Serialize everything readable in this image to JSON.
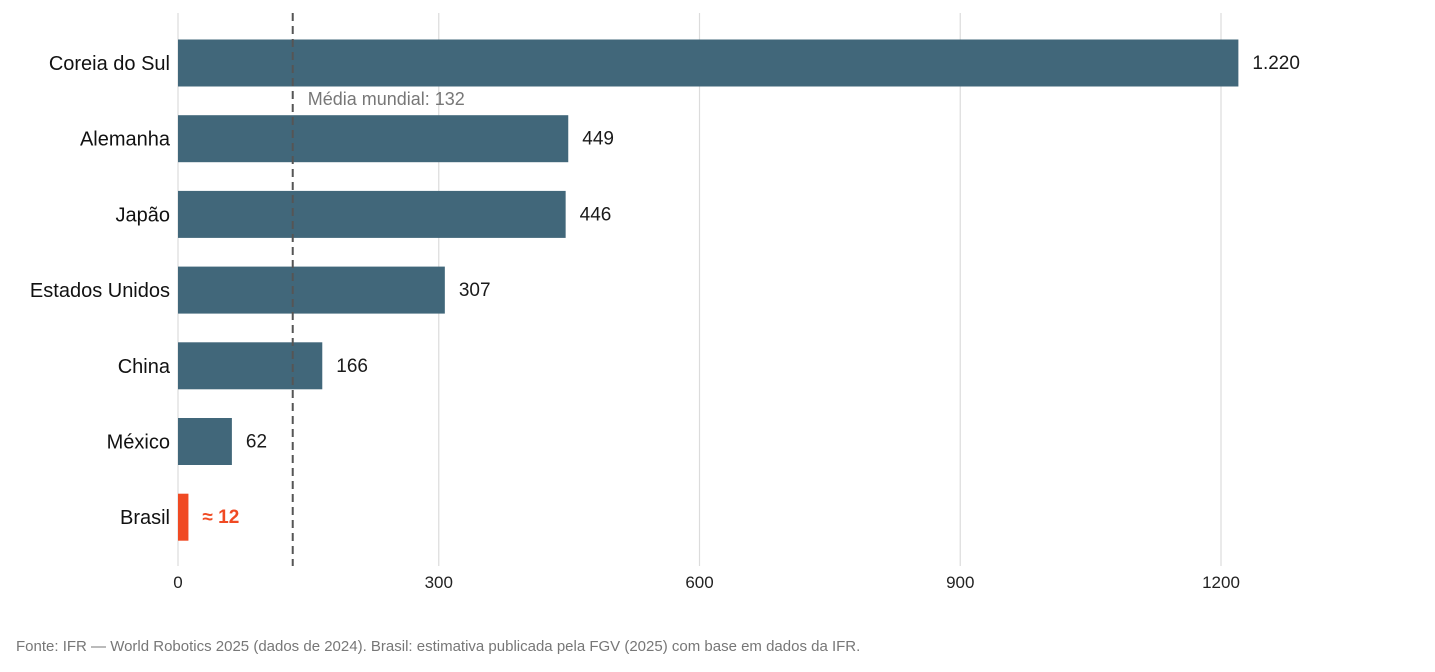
{
  "chart_data": {
    "type": "bar",
    "orientation": "horizontal",
    "categories": [
      "Coreia do Sul",
      "Alemanha",
      "Japão",
      "Estados Unidos",
      "China",
      "México",
      "Brasil"
    ],
    "values": [
      1220,
      449,
      446,
      307,
      166,
      62,
      12
    ],
    "value_labels": [
      "1.220",
      "449",
      "446",
      "307",
      "166",
      "62",
      "≈ 12"
    ],
    "highlight": {
      "category": "Brasil",
      "color": "#f04a23"
    },
    "bar_color": "#41677a",
    "xlim": [
      0,
      1300
    ],
    "xticks": [
      0,
      300,
      600,
      900,
      1200
    ],
    "xtick_labels": [
      "0",
      "300",
      "600",
      "900",
      "1200"
    ],
    "grid": true,
    "reference_line": {
      "value": 132,
      "label": "Média mundial: 132",
      "style": "dashed"
    },
    "source": "Fonte: IFR — World Robotics 2025 (dados de 2024). Brasil: estimativa publicada pela FGV (2025) com base em dados da IFR."
  }
}
